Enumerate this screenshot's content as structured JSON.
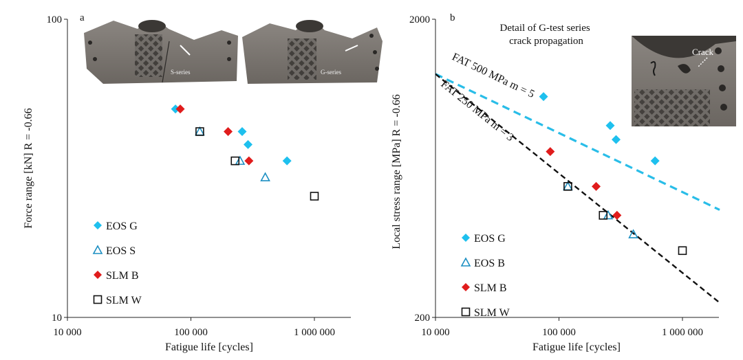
{
  "chart_data": [
    {
      "type": "scatter",
      "panel_label": "a",
      "xlabel": "Fatigue life [cycles]",
      "ylabel": "Force range [kN] R = -0.66",
      "x_scale": "log",
      "y_scale": "log",
      "xlim": [
        10000,
        2000000
      ],
      "ylim": [
        10,
        100
      ],
      "x_ticks": [
        {
          "v": 10000,
          "label": "10 000"
        },
        {
          "v": 100000,
          "label": "100 000"
        },
        {
          "v": 1000000,
          "label": "1 000 000"
        }
      ],
      "y_ticks": [
        {
          "v": 10,
          "label": "10"
        },
        {
          "v": 100,
          "label": "100"
        }
      ],
      "grid": false,
      "legend_position": "lower-left",
      "photos": [
        {
          "label": "S-series"
        },
        {
          "label": "G-series"
        }
      ],
      "series": [
        {
          "name": "EOS G",
          "marker": "diamond",
          "color": "#1ec0ee",
          "points": [
            [
              75000,
              50
            ],
            [
              260000,
              42
            ],
            [
              290000,
              38
            ],
            [
              600000,
              33.5
            ]
          ]
        },
        {
          "name": "EOS S",
          "marker": "triangle",
          "color": "#1c8fc2",
          "points": [
            [
              118000,
              42
            ],
            [
              250000,
              33.5
            ],
            [
              400000,
              29.5
            ]
          ]
        },
        {
          "name": "SLM B",
          "marker": "diamond",
          "color": "#e01c1c",
          "points": [
            [
              82000,
              50
            ],
            [
              200000,
              42
            ],
            [
              295000,
              33.5
            ]
          ]
        },
        {
          "name": "SLM W",
          "marker": "square",
          "color": "#111111",
          "points": [
            [
              118000,
              42
            ],
            [
              228000,
              33.5
            ],
            [
              1000000,
              25.5
            ]
          ]
        }
      ]
    },
    {
      "type": "scatter",
      "panel_label": "b",
      "xlabel": "Fatigue life [cycles]",
      "ylabel": "Local stress  range [MPa] R = -0.66",
      "x_scale": "log",
      "y_scale": "log",
      "xlim": [
        10000,
        2000000
      ],
      "ylim": [
        200,
        2000
      ],
      "x_ticks": [
        {
          "v": 10000,
          "label": "10 000"
        },
        {
          "v": 100000,
          "label": "100 000"
        },
        {
          "v": 1000000,
          "label": "1 000 000"
        }
      ],
      "y_ticks": [
        {
          "v": 200,
          "label": "200"
        },
        {
          "v": 2000,
          "label": "2000"
        }
      ],
      "grid": false,
      "legend_position": "lower-left",
      "inset_title": "Detail of G-test series crack propagation",
      "inset_label": "Crack",
      "lines": [
        {
          "label": "FAT 500 MPa m = 5",
          "color": "#29bde8",
          "x": [
            10000,
            2000000
          ],
          "y": [
            1310,
            459
          ]
        },
        {
          "label": "FAT 250 MPa m = 3",
          "color": "#111111",
          "x": [
            10000,
            2000000
          ],
          "y": [
            1310,
            224
          ]
        }
      ],
      "series": [
        {
          "name": "EOS G",
          "marker": "diamond",
          "color": "#1ec0ee",
          "points": [
            [
              75000,
              1100
            ],
            [
              260000,
              880
            ],
            [
              290000,
              790
            ],
            [
              600000,
              670
            ]
          ]
        },
        {
          "name": "EOS B",
          "marker": "triangle",
          "color": "#1c8fc2",
          "points": [
            [
              118000,
              550
            ],
            [
              250000,
              440
            ],
            [
              400000,
              380
            ]
          ]
        },
        {
          "name": "SLM B",
          "marker": "diamond",
          "color": "#e01c1c",
          "points": [
            [
              85000,
              720
            ],
            [
              200000,
              550
            ],
            [
              295000,
              440
            ]
          ]
        },
        {
          "name": "SLM W",
          "marker": "square",
          "color": "#111111",
          "points": [
            [
              118000,
              550
            ],
            [
              228000,
              440
            ],
            [
              1000000,
              335
            ]
          ]
        }
      ]
    }
  ]
}
